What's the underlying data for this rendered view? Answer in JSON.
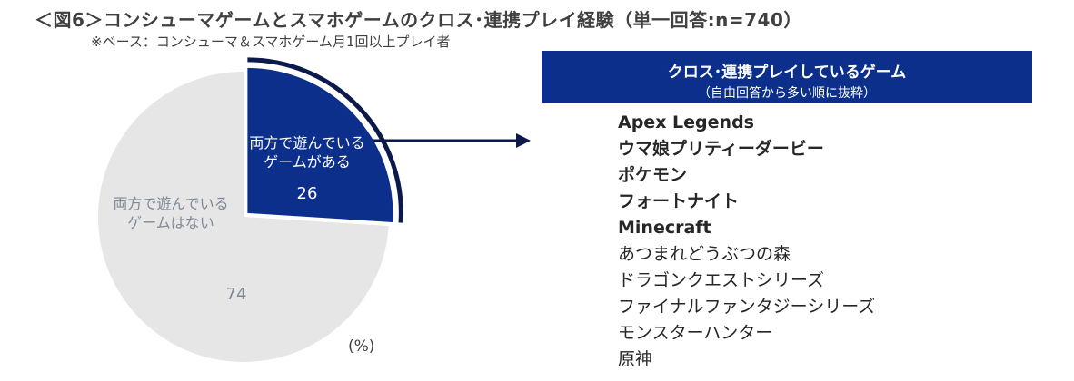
{
  "title": "＜図6＞コンシューマゲームとスマホゲームのクロス･連携プレイ経験（単一回答:n=740）",
  "subtitle": "※ベース：コンシューマ＆スマホゲーム月1回以上プレイ者",
  "unit": "(%)",
  "chart_data": {
    "type": "pie",
    "slices": [
      {
        "label": "両方で遊んでいるゲームがある",
        "label_lines": [
          "両方で遊んでいる",
          "ゲームがある"
        ],
        "value": 26,
        "value_label": "26",
        "color": "#0d2f8c",
        "text_color": "#ffffff",
        "exploded": true
      },
      {
        "label": "両方で遊んでいるゲームはない",
        "label_lines": [
          "両方で遊んでいる",
          "ゲームはない"
        ],
        "value": 74,
        "value_label": "74",
        "color": "#e6e6e6",
        "text_color": "#7f8a99",
        "exploded": false
      }
    ]
  },
  "panel": {
    "title": "クロス･連携プレイしているゲーム",
    "subtitle": "（自由回答から多い順に抜粋）",
    "games": [
      {
        "name": "Apex Legends",
        "bold": true
      },
      {
        "name": "ウマ娘プリティーダービー",
        "bold": true
      },
      {
        "name": "ポケモン",
        "bold": true
      },
      {
        "name": "フォートナイト",
        "bold": true
      },
      {
        "name": "Minecraft",
        "bold": true
      },
      {
        "name": "あつまれどうぶつの森",
        "bold": false
      },
      {
        "name": "ドラゴンクエストシリーズ",
        "bold": false
      },
      {
        "name": "ファイナルファンタジーシリーズ",
        "bold": false
      },
      {
        "name": "モンスターハンター",
        "bold": false
      },
      {
        "name": "原神",
        "bold": false
      }
    ]
  },
  "colors": {
    "accent": "#0d2f8c",
    "arc": "#0b1a4a",
    "pie_gray": "#e6e6e6"
  }
}
